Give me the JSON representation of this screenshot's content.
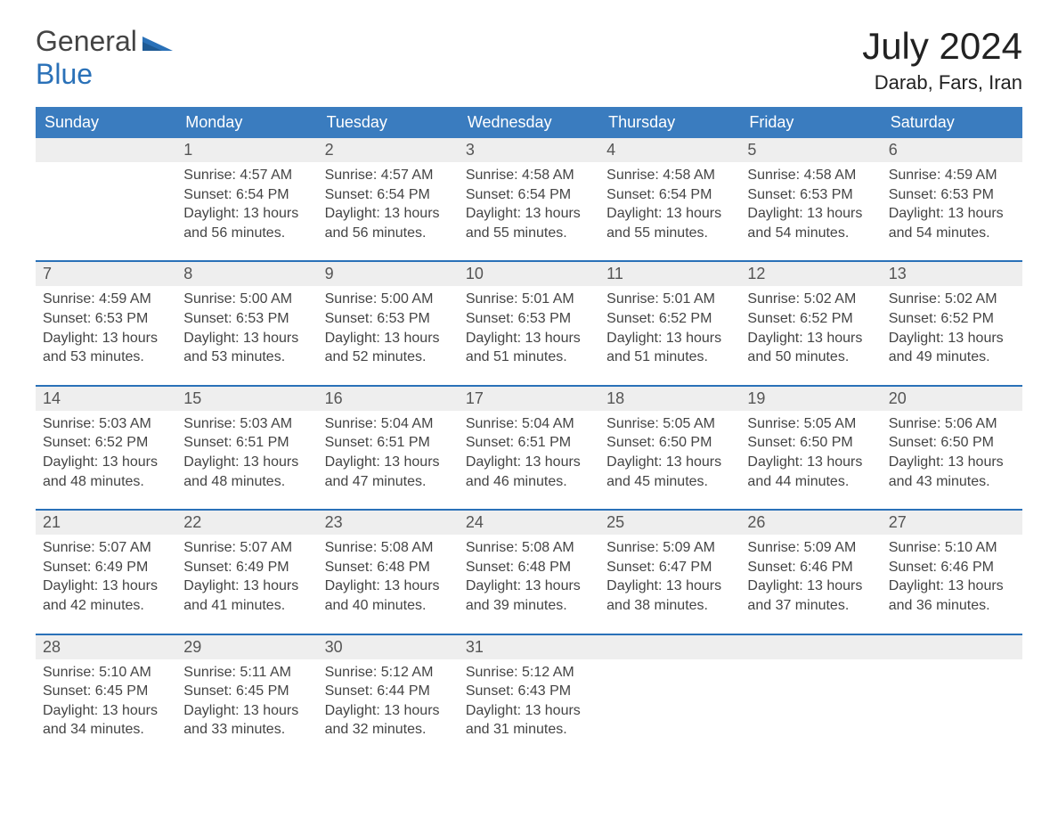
{
  "colors": {
    "brand_blue": "#2a71b8",
    "header_blue": "#3a7cbf",
    "daybar_bg": "#eeeeee",
    "daybar_border": "#2a71b8",
    "text_dark": "#333333",
    "text_muted": "#555555",
    "logo_gray": "#444444",
    "body_text": "#444444",
    "background": "#ffffff"
  },
  "typography": {
    "month_title_size": 42,
    "location_size": 22,
    "weekday_size": 18,
    "daynum_size": 18,
    "body_size": 16,
    "logo_size": 32
  },
  "logo": {
    "word1": "General",
    "word2": "Blue"
  },
  "header": {
    "month_title": "July 2024",
    "location": "Darab, Fars, Iran"
  },
  "weekdays": [
    "Sunday",
    "Monday",
    "Tuesday",
    "Wednesday",
    "Thursday",
    "Friday",
    "Saturday"
  ],
  "weeks": [
    [
      null,
      {
        "n": "1",
        "sunrise": "4:57 AM",
        "sunset": "6:54 PM",
        "dl1": "Daylight: 13 hours",
        "dl2": "and 56 minutes."
      },
      {
        "n": "2",
        "sunrise": "4:57 AM",
        "sunset": "6:54 PM",
        "dl1": "Daylight: 13 hours",
        "dl2": "and 56 minutes."
      },
      {
        "n": "3",
        "sunrise": "4:58 AM",
        "sunset": "6:54 PM",
        "dl1": "Daylight: 13 hours",
        "dl2": "and 55 minutes."
      },
      {
        "n": "4",
        "sunrise": "4:58 AM",
        "sunset": "6:54 PM",
        "dl1": "Daylight: 13 hours",
        "dl2": "and 55 minutes."
      },
      {
        "n": "5",
        "sunrise": "4:58 AM",
        "sunset": "6:53 PM",
        "dl1": "Daylight: 13 hours",
        "dl2": "and 54 minutes."
      },
      {
        "n": "6",
        "sunrise": "4:59 AM",
        "sunset": "6:53 PM",
        "dl1": "Daylight: 13 hours",
        "dl2": "and 54 minutes."
      }
    ],
    [
      {
        "n": "7",
        "sunrise": "4:59 AM",
        "sunset": "6:53 PM",
        "dl1": "Daylight: 13 hours",
        "dl2": "and 53 minutes."
      },
      {
        "n": "8",
        "sunrise": "5:00 AM",
        "sunset": "6:53 PM",
        "dl1": "Daylight: 13 hours",
        "dl2": "and 53 minutes."
      },
      {
        "n": "9",
        "sunrise": "5:00 AM",
        "sunset": "6:53 PM",
        "dl1": "Daylight: 13 hours",
        "dl2": "and 52 minutes."
      },
      {
        "n": "10",
        "sunrise": "5:01 AM",
        "sunset": "6:53 PM",
        "dl1": "Daylight: 13 hours",
        "dl2": "and 51 minutes."
      },
      {
        "n": "11",
        "sunrise": "5:01 AM",
        "sunset": "6:52 PM",
        "dl1": "Daylight: 13 hours",
        "dl2": "and 51 minutes."
      },
      {
        "n": "12",
        "sunrise": "5:02 AM",
        "sunset": "6:52 PM",
        "dl1": "Daylight: 13 hours",
        "dl2": "and 50 minutes."
      },
      {
        "n": "13",
        "sunrise": "5:02 AM",
        "sunset": "6:52 PM",
        "dl1": "Daylight: 13 hours",
        "dl2": "and 49 minutes."
      }
    ],
    [
      {
        "n": "14",
        "sunrise": "5:03 AM",
        "sunset": "6:52 PM",
        "dl1": "Daylight: 13 hours",
        "dl2": "and 48 minutes."
      },
      {
        "n": "15",
        "sunrise": "5:03 AM",
        "sunset": "6:51 PM",
        "dl1": "Daylight: 13 hours",
        "dl2": "and 48 minutes."
      },
      {
        "n": "16",
        "sunrise": "5:04 AM",
        "sunset": "6:51 PM",
        "dl1": "Daylight: 13 hours",
        "dl2": "and 47 minutes."
      },
      {
        "n": "17",
        "sunrise": "5:04 AM",
        "sunset": "6:51 PM",
        "dl1": "Daylight: 13 hours",
        "dl2": "and 46 minutes."
      },
      {
        "n": "18",
        "sunrise": "5:05 AM",
        "sunset": "6:50 PM",
        "dl1": "Daylight: 13 hours",
        "dl2": "and 45 minutes."
      },
      {
        "n": "19",
        "sunrise": "5:05 AM",
        "sunset": "6:50 PM",
        "dl1": "Daylight: 13 hours",
        "dl2": "and 44 minutes."
      },
      {
        "n": "20",
        "sunrise": "5:06 AM",
        "sunset": "6:50 PM",
        "dl1": "Daylight: 13 hours",
        "dl2": "and 43 minutes."
      }
    ],
    [
      {
        "n": "21",
        "sunrise": "5:07 AM",
        "sunset": "6:49 PM",
        "dl1": "Daylight: 13 hours",
        "dl2": "and 42 minutes."
      },
      {
        "n": "22",
        "sunrise": "5:07 AM",
        "sunset": "6:49 PM",
        "dl1": "Daylight: 13 hours",
        "dl2": "and 41 minutes."
      },
      {
        "n": "23",
        "sunrise": "5:08 AM",
        "sunset": "6:48 PM",
        "dl1": "Daylight: 13 hours",
        "dl2": "and 40 minutes."
      },
      {
        "n": "24",
        "sunrise": "5:08 AM",
        "sunset": "6:48 PM",
        "dl1": "Daylight: 13 hours",
        "dl2": "and 39 minutes."
      },
      {
        "n": "25",
        "sunrise": "5:09 AM",
        "sunset": "6:47 PM",
        "dl1": "Daylight: 13 hours",
        "dl2": "and 38 minutes."
      },
      {
        "n": "26",
        "sunrise": "5:09 AM",
        "sunset": "6:46 PM",
        "dl1": "Daylight: 13 hours",
        "dl2": "and 37 minutes."
      },
      {
        "n": "27",
        "sunrise": "5:10 AM",
        "sunset": "6:46 PM",
        "dl1": "Daylight: 13 hours",
        "dl2": "and 36 minutes."
      }
    ],
    [
      {
        "n": "28",
        "sunrise": "5:10 AM",
        "sunset": "6:45 PM",
        "dl1": "Daylight: 13 hours",
        "dl2": "and 34 minutes."
      },
      {
        "n": "29",
        "sunrise": "5:11 AM",
        "sunset": "6:45 PM",
        "dl1": "Daylight: 13 hours",
        "dl2": "and 33 minutes."
      },
      {
        "n": "30",
        "sunrise": "5:12 AM",
        "sunset": "6:44 PM",
        "dl1": "Daylight: 13 hours",
        "dl2": "and 32 minutes."
      },
      {
        "n": "31",
        "sunrise": "5:12 AM",
        "sunset": "6:43 PM",
        "dl1": "Daylight: 13 hours",
        "dl2": "and 31 minutes."
      },
      null,
      null,
      null
    ]
  ],
  "labels": {
    "sunrise_prefix": "Sunrise: ",
    "sunset_prefix": "Sunset: "
  }
}
